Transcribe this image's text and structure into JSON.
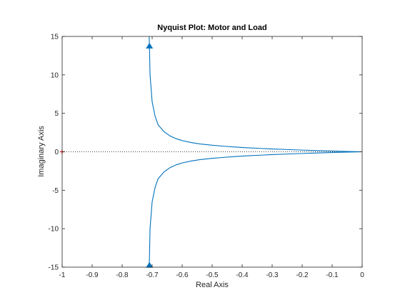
{
  "chart_data": {
    "type": "line",
    "title": "Nyquist Plot:  Motor and Load",
    "xlabel": "Real Axis",
    "ylabel": "Imaginary Axis",
    "xlim": [
      -1,
      0
    ],
    "ylim": [
      -15,
      15
    ],
    "xticks": [
      -1,
      -0.9,
      -0.8,
      -0.7,
      -0.6,
      -0.5,
      -0.4,
      -0.3,
      -0.2,
      -0.1,
      0
    ],
    "xtick_labels": [
      "-1",
      "-0.9",
      "-0.8",
      "-0.7",
      "-0.6",
      "-0.5",
      "-0.4",
      "-0.3",
      "-0.2",
      "-0.1",
      "0"
    ],
    "yticks": [
      -15,
      -10,
      -5,
      0,
      5,
      10,
      15
    ],
    "ytick_labels": [
      "-15",
      "-10",
      "-5",
      "0",
      "5",
      "10",
      "15"
    ],
    "grid": false,
    "colors": {
      "curve": "#0072BD",
      "critical_point": "#FF0000",
      "reference_line": "#000000"
    },
    "series": [
      {
        "values_x": [
          -0.71,
          -0.709,
          -0.707,
          -0.7,
          -0.69,
          -0.68,
          -0.66,
          -0.64,
          -0.62,
          -0.6,
          -0.57,
          -0.54,
          -0.5,
          -0.46,
          -0.42,
          -0.38,
          -0.34,
          -0.3,
          -0.25,
          -0.2,
          -0.16,
          -0.12,
          -0.08,
          -0.05,
          -0.02,
          0
        ],
        "values_y": [
          15,
          13.8,
          10,
          6.5,
          4.6,
          3.5,
          2.6,
          2.05,
          1.7,
          1.45,
          1.2,
          1.02,
          0.85,
          0.72,
          0.61,
          0.52,
          0.44,
          0.37,
          0.29,
          0.22,
          0.17,
          0.12,
          0.075,
          0.045,
          0.018,
          0
        ]
      },
      {
        "values_x": [
          0,
          -0.02,
          -0.05,
          -0.08,
          -0.12,
          -0.16,
          -0.2,
          -0.25,
          -0.3,
          -0.34,
          -0.38,
          -0.42,
          -0.46,
          -0.5,
          -0.54,
          -0.57,
          -0.6,
          -0.62,
          -0.64,
          -0.66,
          -0.68,
          -0.69,
          -0.7,
          -0.707,
          -0.709,
          -0.71
        ],
        "values_y": [
          0,
          -0.018,
          -0.045,
          -0.075,
          -0.12,
          -0.17,
          -0.22,
          -0.29,
          -0.37,
          -0.44,
          -0.52,
          -0.61,
          -0.72,
          -0.85,
          -1.02,
          -1.2,
          -1.45,
          -1.7,
          -2.05,
          -2.6,
          -3.5,
          -4.6,
          -6.5,
          -10,
          -13.8,
          -15
        ]
      }
    ],
    "arrows": [
      {
        "x": -0.709,
        "y": 13.8,
        "direction": "up"
      },
      {
        "x": -0.709,
        "y": -14.7,
        "direction": "up"
      }
    ],
    "critical_point": {
      "x": -1,
      "y": 0
    },
    "reference_line": {
      "y": 0
    }
  }
}
